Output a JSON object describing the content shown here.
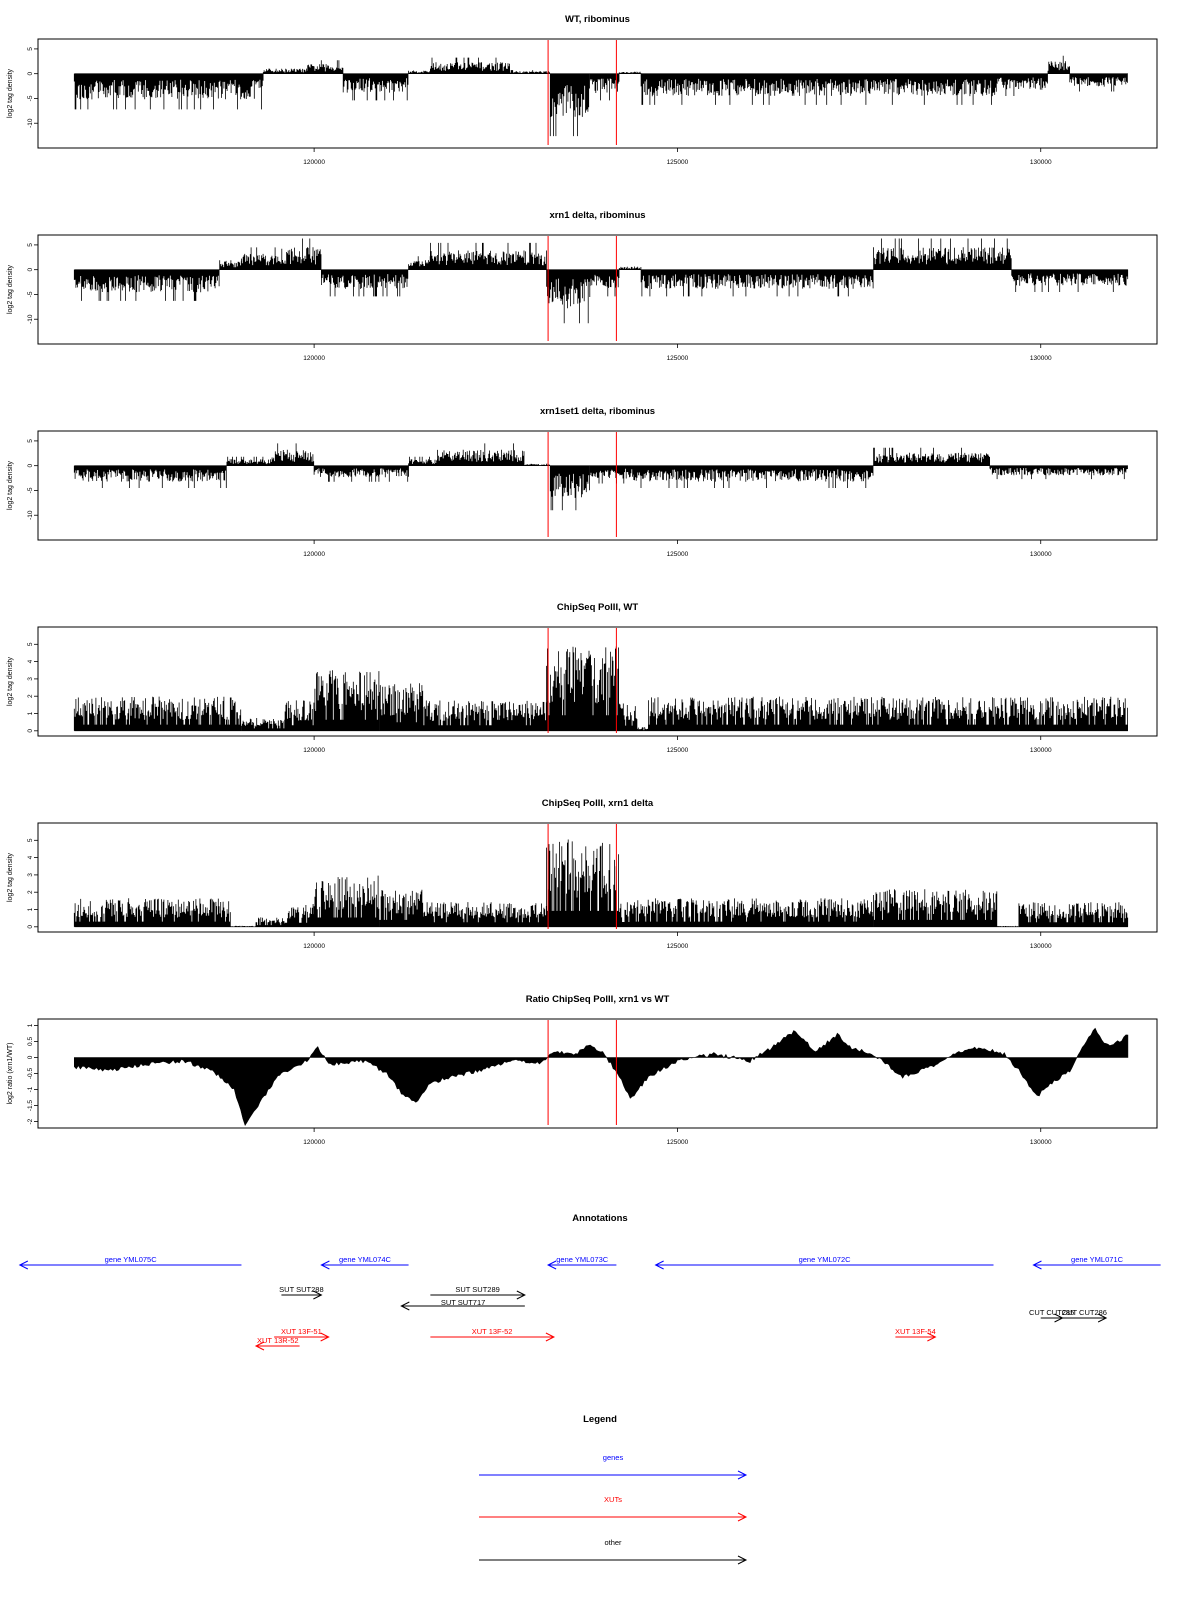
{
  "chart_data": [
    {
      "type": "bar",
      "title": "WT, ribominus",
      "ylabel": "log2 tag density",
      "ylim": [
        -15,
        7
      ],
      "yticks": [
        5,
        0,
        -5,
        -10
      ],
      "xlim": [
        116200,
        131600
      ],
      "xticks": [
        120000,
        125000,
        130000
      ],
      "red_markers_x": [
        123220,
        124160
      ],
      "series": [
        {
          "segments": [
            [
              116700,
              119300,
              -4
            ],
            [
              119300,
              119900,
              0.8
            ],
            [
              119900,
              120400,
              1.5
            ],
            [
              120400,
              121300,
              -3
            ],
            [
              121300,
              121600,
              0.5
            ],
            [
              121600,
              122700,
              1.8
            ],
            [
              122700,
              123250,
              0.4
            ],
            [
              123250,
              123800,
              -7
            ],
            [
              123800,
              124200,
              -3
            ],
            [
              124200,
              124500,
              0.3
            ],
            [
              124500,
              129400,
              -3.5
            ],
            [
              129400,
              130100,
              -2.5
            ],
            [
              130100,
              130400,
              2
            ],
            [
              130400,
              131200,
              -2
            ]
          ]
        }
      ]
    },
    {
      "type": "bar",
      "title": "xrn1 delta, ribominus",
      "ylabel": "log2 tag density",
      "ylim": [
        -15,
        7
      ],
      "yticks": [
        5,
        0,
        -5,
        -10
      ],
      "xlim": [
        116200,
        131600
      ],
      "xticks": [
        120000,
        125000,
        130000
      ],
      "red_markers_x": [
        123220,
        124160
      ],
      "series": [
        {
          "segments": [
            [
              116700,
              118700,
              -3.5
            ],
            [
              118700,
              119000,
              1.5
            ],
            [
              119000,
              119500,
              2.5
            ],
            [
              119500,
              120100,
              3.5
            ],
            [
              120100,
              121300,
              -3
            ],
            [
              121300,
              121600,
              1.5
            ],
            [
              121600,
              123200,
              3
            ],
            [
              123200,
              123800,
              -6
            ],
            [
              123800,
              124200,
              -3
            ],
            [
              124200,
              124500,
              0.5
            ],
            [
              124500,
              127700,
              -3
            ],
            [
              127700,
              129600,
              3.5
            ],
            [
              129600,
              131200,
              -2.5
            ]
          ]
        }
      ]
    },
    {
      "type": "bar",
      "title": "xrn1set1 delta, ribominus",
      "ylabel": "log2 tag density",
      "ylim": [
        -15,
        7
      ],
      "yticks": [
        5,
        0,
        -5,
        -10
      ],
      "xlim": [
        116200,
        131600
      ],
      "xticks": [
        120000,
        125000,
        130000
      ],
      "red_markers_x": [
        123220,
        124160
      ],
      "series": [
        {
          "segments": [
            [
              116700,
              118800,
              -2.5
            ],
            [
              118800,
              119400,
              1
            ],
            [
              119400,
              120000,
              2.5
            ],
            [
              120000,
              121300,
              -1.8
            ],
            [
              121300,
              121700,
              1
            ],
            [
              121700,
              122900,
              2.5
            ],
            [
              122900,
              123250,
              0.3
            ],
            [
              123250,
              123800,
              -5
            ],
            [
              123800,
              124400,
              -2
            ],
            [
              124400,
              127700,
              -2.5
            ],
            [
              127700,
              129300,
              2
            ],
            [
              129300,
              131200,
              -1.5
            ]
          ]
        }
      ]
    },
    {
      "type": "bar",
      "title": "ChipSeq PolII, WT",
      "ylabel": "log2 tag density",
      "ylim": [
        -0.3,
        6
      ],
      "yticks": [
        0,
        1,
        2,
        3,
        4,
        5
      ],
      "xlim": [
        116200,
        131600
      ],
      "xticks": [
        120000,
        125000,
        130000
      ],
      "red_markers_x": [
        123220,
        124160
      ],
      "series": [
        {
          "segments": [
            [
              116700,
              119000,
              1.8
            ],
            [
              119000,
              119600,
              0.7
            ],
            [
              119600,
              120000,
              1.6
            ],
            [
              120000,
              120900,
              3.2
            ],
            [
              120900,
              121500,
              2.5
            ],
            [
              121500,
              123200,
              1.6
            ],
            [
              123200,
              124200,
              4.5
            ],
            [
              124200,
              124450,
              1.5
            ],
            [
              124450,
              124600,
              0.2
            ],
            [
              124600,
              131200,
              1.8
            ]
          ]
        }
      ]
    },
    {
      "type": "bar",
      "title": "ChipSeq PolII, xrn1 delta",
      "ylabel": "log2 tag density",
      "ylim": [
        -0.3,
        6
      ],
      "yticks": [
        0,
        1,
        2,
        3,
        4,
        5
      ],
      "xlim": [
        116200,
        131600
      ],
      "xticks": [
        120000,
        125000,
        130000
      ],
      "red_markers_x": [
        123220,
        124160
      ],
      "series": [
        {
          "segments": [
            [
              116700,
              118850,
              1.5
            ],
            [
              118850,
              119200,
              0.05
            ],
            [
              119200,
              119600,
              0.5
            ],
            [
              119600,
              120000,
              1.2
            ],
            [
              120000,
              120900,
              2.7
            ],
            [
              120900,
              121500,
              2
            ],
            [
              121500,
              123200,
              1.3
            ],
            [
              123200,
              124200,
              4.6
            ],
            [
              124200,
              124400,
              1.4
            ],
            [
              124400,
              127700,
              1.5
            ],
            [
              127700,
              129400,
              2
            ],
            [
              129400,
              129700,
              0.05
            ],
            [
              129700,
              131200,
              1.3
            ]
          ]
        }
      ]
    },
    {
      "type": "area",
      "title": "Ratio ChipSeq PolII, xrn1 vs WT",
      "ylabel": "log2 ratio (xrn1/WT)",
      "ylim": [
        -2.2,
        1.2
      ],
      "yticks": [
        1.0,
        0.5,
        0.0,
        -0.5,
        -1.0,
        -1.5,
        -2.0
      ],
      "xlim": [
        116200,
        131600
      ],
      "xticks": [
        120000,
        125000,
        130000
      ],
      "red_markers_x": [
        123220,
        124160
      ],
      "series": [
        {
          "x": [
            116700,
            117200,
            117700,
            118200,
            118600,
            118900,
            119050,
            119200,
            119500,
            119900,
            120050,
            120200,
            120700,
            121000,
            121200,
            121400,
            121600,
            121900,
            122300,
            122700,
            123100,
            123300,
            123600,
            123800,
            124000,
            124200,
            124350,
            124600,
            125000,
            125500,
            126000,
            126300,
            126600,
            126900,
            127200,
            127400,
            127700,
            128100,
            128500,
            128900,
            129200,
            129500,
            129700,
            129950,
            130100,
            130400,
            130600,
            130750,
            130900,
            131000,
            131200
          ],
          "y": [
            -0.3,
            -0.4,
            -0.2,
            -0.1,
            -0.4,
            -1.0,
            -2.1,
            -1.6,
            -0.6,
            -0.1,
            0.3,
            -0.2,
            -0.1,
            -0.5,
            -1.1,
            -1.4,
            -0.8,
            -0.6,
            -0.4,
            -0.1,
            -0.2,
            0.2,
            0.1,
            0.4,
            0.1,
            -0.6,
            -1.3,
            -0.6,
            -0.1,
            0.1,
            -0.1,
            0.3,
            0.8,
            0.2,
            0.7,
            0.3,
            0.1,
            -0.6,
            -0.3,
            0.2,
            0.3,
            0.1,
            -0.4,
            -1.2,
            -0.9,
            -0.4,
            0.4,
            0.9,
            0.4,
            0.4,
            0.7
          ]
        }
      ]
    },
    {
      "type": "annotation-track",
      "title": "Annotations",
      "xlim": [
        116200,
        131600
      ],
      "features": [
        {
          "label": "gene YML075C",
          "start": 115950,
          "end": 119000,
          "dir": "reverse",
          "cls": "gene",
          "row": 0
        },
        {
          "label": "gene YML074C",
          "start": 120100,
          "end": 121300,
          "dir": "reverse",
          "cls": "gene",
          "row": 0
        },
        {
          "label": "gene YML073C",
          "start": 123220,
          "end": 124160,
          "dir": "reverse",
          "cls": "gene",
          "row": 0
        },
        {
          "label": "gene YML072C",
          "start": 124700,
          "end": 129350,
          "dir": "reverse",
          "cls": "gene",
          "row": 0
        },
        {
          "label": "gene YML071C",
          "start": 129900,
          "end": 131650,
          "dir": "reverse",
          "cls": "gene",
          "row": 0
        },
        {
          "label": "SUT SUT288",
          "start": 119550,
          "end": 120100,
          "dir": "forward",
          "cls": "other",
          "row": 1
        },
        {
          "label": "SUT SUT289",
          "start": 121600,
          "end": 122900,
          "dir": "forward",
          "cls": "other",
          "row": 1
        },
        {
          "label": "SUT SUT717",
          "start": 121200,
          "end": 122900,
          "dir": "reverse",
          "cls": "other",
          "row": 2
        },
        {
          "label": "CUT CUT285",
          "start": 130000,
          "end": 130300,
          "dir": "forward",
          "cls": "other",
          "row": 3
        },
        {
          "label": "CUT CUT286",
          "start": 130300,
          "end": 130900,
          "dir": "forward",
          "cls": "other",
          "row": 3
        },
        {
          "label": "XUT 13F-51",
          "start": 119450,
          "end": 120200,
          "dir": "forward",
          "cls": "xut",
          "row": 4
        },
        {
          "label": "XUT 13F-52",
          "start": 121600,
          "end": 123300,
          "dir": "forward",
          "cls": "xut",
          "row": 4
        },
        {
          "label": "XUT 13F-54",
          "start": 128000,
          "end": 128550,
          "dir": "forward",
          "cls": "xut",
          "row": 4
        },
        {
          "label": "XUT 13R-52",
          "start": 119200,
          "end": 119800,
          "dir": "reverse",
          "cls": "xut",
          "row": 5
        }
      ]
    }
  ],
  "legend": {
    "title": "Legend",
    "items": [
      {
        "label": "genes",
        "color": "#0000ff"
      },
      {
        "label": "XUTs",
        "color": "#ff0000"
      },
      {
        "label": "other",
        "color": "#000000"
      }
    ]
  },
  "colors": {
    "gene": "#0000ff",
    "xut": "#ff0000",
    "other": "#000000",
    "marker": "#ff0000",
    "data": "#000000"
  }
}
